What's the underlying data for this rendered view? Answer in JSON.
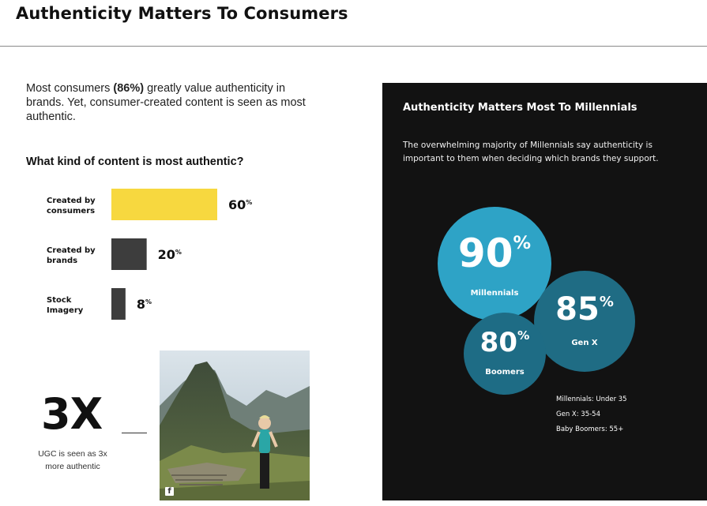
{
  "header": {
    "title": "Authenticity Matters To Consumers"
  },
  "intro": {
    "text_before": "Most consumers ",
    "highlight": "(86%)",
    "text_after": " greatly value authenticity in brands. Yet, consumer-created content is seen as most authentic."
  },
  "bar_section": {
    "question": "What kind of content is most authentic?",
    "percent_suffix": "%"
  },
  "stat": {
    "big_number": "3X",
    "caption": "UGC is seen as 3x more authentic"
  },
  "photo": {
    "icon": "facebook-icon",
    "icon_glyph": "f"
  },
  "panel": {
    "title": "Authenticity Matters Most To Millennials",
    "text": "The overwhelming majority of Millennials say authenticity is important to them when deciding which brands they support.",
    "percent_suffix": "%",
    "legend": [
      "Millennials: Under 35",
      "Gen X: 35-54",
      "Baby Boomers: 55+"
    ]
  },
  "colors": {
    "consumers_bar": "#f7d83f",
    "other_bars": "#3d3d3d",
    "millennials": "#2ea3c6",
    "genx": "#1f6c84",
    "boomers": "#1e6c85",
    "panel_bg": "#121212"
  },
  "chart_data": [
    {
      "type": "bar",
      "orientation": "horizontal",
      "title": "What kind of content is most authentic?",
      "categories": [
        [
          "Created by",
          "consumers"
        ],
        [
          "Created by",
          "brands"
        ],
        [
          "Stock",
          "Imagery"
        ]
      ],
      "values": [
        60,
        20,
        8
      ],
      "unit": "%"
    },
    {
      "type": "bubble",
      "title": "Authenticity Matters Most To Millennials",
      "categories": [
        "Millennials",
        "Gen X",
        "Boomers"
      ],
      "values": [
        90,
        85,
        80
      ],
      "unit": "%"
    }
  ]
}
